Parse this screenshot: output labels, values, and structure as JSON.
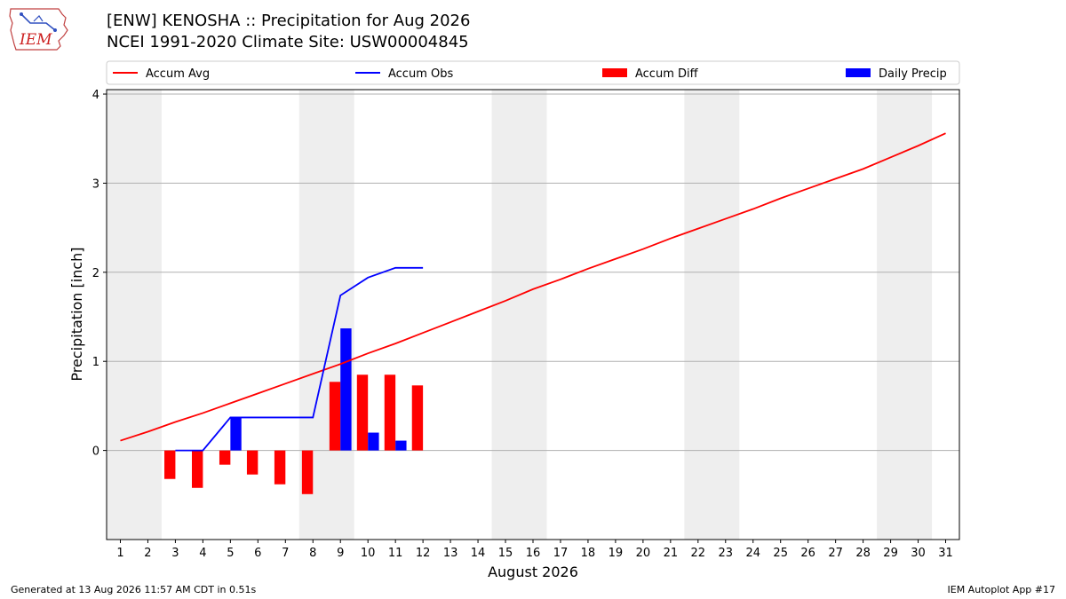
{
  "header": {
    "logo_text": "IEM",
    "title_line1": "[ENW] KENOSHA :: Precipitation for Aug 2026",
    "title_line2": "NCEI 1991-2020 Climate Site: USW00004845"
  },
  "footer": {
    "generated": "Generated at 13 Aug 2026 11:57 AM CDT in 0.51s",
    "app": "IEM Autoplot App #17"
  },
  "colors": {
    "accum_avg": "#ff0000",
    "accum_obs": "#0000ff",
    "accum_diff": "#ff0000",
    "daily_precip": "#0000ff",
    "weekend_band": "#eeeeee",
    "grid": "#b0b0b0"
  },
  "chart_data": {
    "type": "bar",
    "xlabel": "August 2026",
    "ylabel": "Precipitation [inch]",
    "xlim": [
      0.5,
      31.5
    ],
    "ylim": [
      -1.0,
      4.05
    ],
    "yticks": [
      0,
      1,
      2,
      3,
      4
    ],
    "xticks": [
      1,
      2,
      3,
      4,
      5,
      6,
      7,
      8,
      9,
      10,
      11,
      12,
      13,
      14,
      15,
      16,
      17,
      18,
      19,
      20,
      21,
      22,
      23,
      24,
      25,
      26,
      27,
      28,
      29,
      30,
      31
    ],
    "grid": "horizontal",
    "legend_position": "top",
    "weekend_bands": [
      [
        0.5,
        2.5
      ],
      [
        7.5,
        9.5
      ],
      [
        14.5,
        16.5
      ],
      [
        21.5,
        23.5
      ],
      [
        28.5,
        30.5
      ]
    ],
    "legend": [
      {
        "name": "Accum Avg",
        "kind": "line",
        "color": "#ff0000"
      },
      {
        "name": "Accum Obs",
        "kind": "line",
        "color": "#0000ff"
      },
      {
        "name": "Accum Diff",
        "kind": "bar",
        "color": "#ff0000"
      },
      {
        "name": "Daily Precip",
        "kind": "bar",
        "color": "#0000ff"
      }
    ],
    "series": [
      {
        "name": "Accum Avg",
        "type": "line",
        "x": [
          1,
          2,
          3,
          4,
          5,
          6,
          7,
          8,
          9,
          10,
          11,
          12,
          13,
          14,
          15,
          16,
          17,
          18,
          19,
          20,
          21,
          22,
          23,
          24,
          25,
          26,
          27,
          28,
          29,
          30,
          31
        ],
        "values": [
          0.11,
          0.21,
          0.32,
          0.42,
          0.53,
          0.64,
          0.75,
          0.86,
          0.97,
          1.09,
          1.2,
          1.32,
          1.44,
          1.56,
          1.68,
          1.81,
          1.92,
          2.04,
          2.15,
          2.26,
          2.38,
          2.49,
          2.6,
          2.71,
          2.83,
          2.94,
          3.05,
          3.16,
          3.29,
          3.42,
          3.56
        ]
      },
      {
        "name": "Accum Obs",
        "type": "line",
        "x": [
          3,
          4,
          5,
          6,
          7,
          8,
          9,
          10,
          11,
          12
        ],
        "values": [
          0.0,
          0.0,
          0.37,
          0.37,
          0.37,
          0.37,
          1.74,
          1.94,
          2.05,
          2.05
        ]
      },
      {
        "name": "Accum Diff",
        "type": "bar",
        "x": [
          3,
          4,
          5,
          6,
          7,
          8,
          9,
          10,
          11,
          12
        ],
        "values": [
          -0.32,
          -0.42,
          -0.16,
          -0.27,
          -0.38,
          -0.49,
          0.77,
          0.85,
          0.85,
          0.73
        ]
      },
      {
        "name": "Daily Precip",
        "type": "bar",
        "x": [
          5,
          9,
          10,
          11
        ],
        "values": [
          0.37,
          1.37,
          0.2,
          0.11
        ]
      }
    ]
  }
}
